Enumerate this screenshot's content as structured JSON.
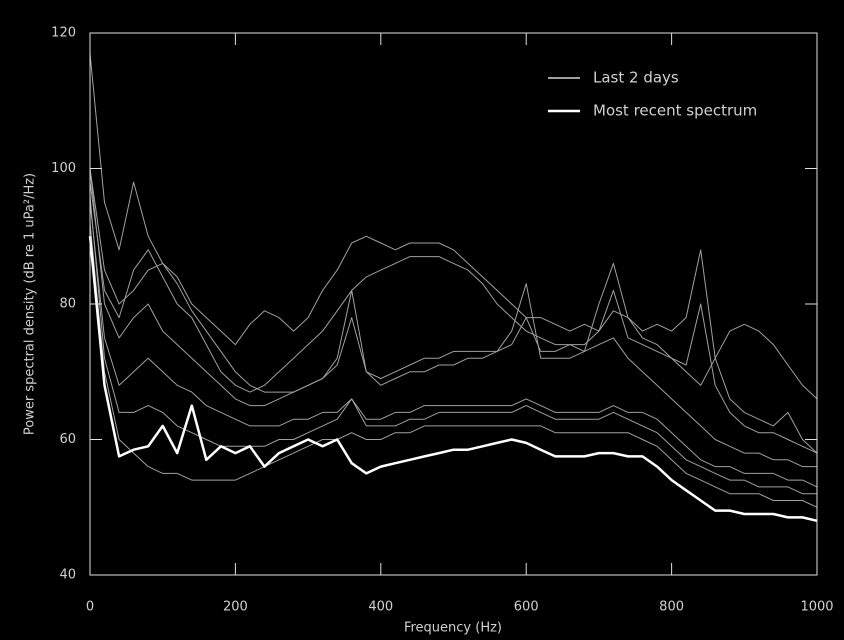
{
  "chart_data": {
    "type": "line",
    "xlabel": "Frequency (Hz)",
    "ylabel": "Power spectral density (dB re 1 uPa²/Hz)",
    "xlim": [
      0,
      1000
    ],
    "ylim": [
      40,
      120
    ],
    "xticks": [
      0,
      200,
      400,
      600,
      800,
      1000
    ],
    "yticks": [
      40,
      60,
      80,
      100,
      120
    ],
    "legend": "upper right",
    "x": [
      0,
      20,
      40,
      60,
      80,
      100,
      120,
      140,
      160,
      180,
      200,
      220,
      240,
      260,
      280,
      300,
      320,
      340,
      360,
      380,
      400,
      420,
      440,
      460,
      480,
      500,
      520,
      540,
      560,
      580,
      600,
      620,
      640,
      660,
      680,
      700,
      720,
      740,
      760,
      780,
      800,
      820,
      840,
      860,
      880,
      900,
      920,
      940,
      960,
      980,
      1000
    ],
    "series": [
      {
        "name": "Last 2 days",
        "color": "#a0a0a0",
        "lines": [
          [
            117,
            95,
            88,
            98,
            90,
            86,
            84,
            80,
            78,
            76,
            74,
            77,
            79,
            78,
            76,
            78,
            82,
            85,
            89,
            90,
            89,
            88,
            89,
            89,
            89,
            88,
            86,
            84,
            82,
            80,
            78,
            78,
            77,
            76,
            77,
            76,
            79,
            78,
            75,
            74,
            72,
            70,
            68,
            72,
            76,
            77,
            76,
            74,
            71,
            68,
            66
          ],
          [
            100,
            80,
            75,
            78,
            80,
            76,
            74,
            72,
            70,
            68,
            66,
            65,
            65,
            66,
            67,
            68,
            69,
            72,
            82,
            70,
            68,
            69,
            70,
            70,
            71,
            71,
            72,
            72,
            73,
            76,
            83,
            72,
            72,
            72,
            73,
            80,
            86,
            78,
            76,
            77,
            76,
            78,
            88,
            72,
            66,
            64,
            63,
            62,
            64,
            60,
            58
          ],
          [
            95,
            75,
            68,
            70,
            72,
            70,
            68,
            67,
            65,
            64,
            63,
            62,
            62,
            62,
            63,
            63,
            64,
            64,
            66,
            63,
            63,
            64,
            64,
            65,
            65,
            65,
            65,
            65,
            65,
            65,
            66,
            65,
            64,
            64,
            64,
            64,
            65,
            64,
            64,
            63,
            61,
            59,
            57,
            56,
            56,
            55,
            55,
            55,
            54,
            54,
            53
          ],
          [
            92,
            70,
            60,
            58,
            56,
            55,
            55,
            54,
            54,
            54,
            54,
            55,
            56,
            57,
            58,
            59,
            60,
            60,
            61,
            60,
            60,
            61,
            61,
            62,
            62,
            62,
            62,
            62,
            62,
            62,
            62,
            62,
            61,
            61,
            61,
            61,
            61,
            61,
            60,
            59,
            57,
            55,
            54,
            53,
            52,
            52,
            52,
            51,
            51,
            51,
            50
          ],
          [
            98,
            82,
            78,
            85,
            88,
            84,
            80,
            78,
            74,
            70,
            68,
            67,
            68,
            70,
            72,
            74,
            76,
            79,
            82,
            84,
            85,
            86,
            87,
            87,
            87,
            86,
            85,
            83,
            80,
            78,
            76,
            75,
            74,
            74,
            73,
            74,
            75,
            72,
            70,
            68,
            66,
            64,
            62,
            60,
            59,
            58,
            58,
            57,
            57,
            56,
            56
          ],
          [
            100,
            85,
            80,
            82,
            85,
            86,
            83,
            79,
            76,
            73,
            70,
            68,
            67,
            67,
            67,
            68,
            69,
            71,
            78,
            70,
            69,
            70,
            71,
            72,
            72,
            73,
            73,
            73,
            73,
            74,
            78,
            73,
            73,
            74,
            74,
            76,
            82,
            75,
            74,
            73,
            72,
            71,
            80,
            68,
            64,
            62,
            61,
            61,
            60,
            59,
            58
          ],
          [
            96,
            72,
            64,
            64,
            65,
            64,
            62,
            61,
            60,
            59,
            59,
            59,
            59,
            60,
            60,
            61,
            62,
            63,
            66,
            62,
            62,
            62,
            63,
            63,
            64,
            64,
            64,
            64,
            64,
            64,
            65,
            64,
            63,
            63,
            63,
            63,
            64,
            63,
            62,
            61,
            59,
            57,
            56,
            55,
            54,
            54,
            53,
            53,
            53,
            52,
            52
          ]
        ]
      },
      {
        "name": "Most recent spectrum",
        "color": "#ffffff",
        "values": [
          90,
          68,
          57.5,
          58.5,
          59,
          62,
          58,
          65,
          57,
          59,
          58,
          59,
          56,
          58,
          59,
          60,
          59,
          60,
          56.5,
          55,
          56,
          56.5,
          57,
          57.5,
          58,
          58.5,
          58.5,
          59,
          59.5,
          60,
          59.5,
          58.5,
          57.5,
          57.5,
          57.5,
          58,
          58,
          57.5,
          57.5,
          56,
          54,
          52.5,
          51,
          49.5,
          49.5,
          49,
          49,
          49,
          48.5,
          48.5,
          48
        ]
      }
    ]
  }
}
